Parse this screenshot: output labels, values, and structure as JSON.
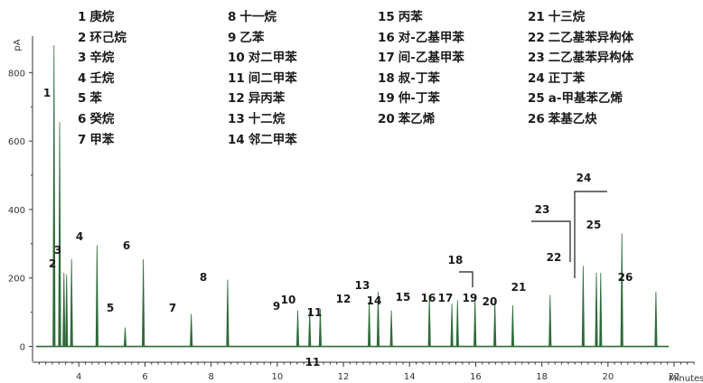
{
  "chart_data": {
    "type": "line",
    "y_unit": "pA",
    "x_unit": "Minutes",
    "xlim": [
      2.6,
      22.6
    ],
    "ylim": [
      -25,
      880
    ],
    "x_ticks": [
      4,
      6,
      8,
      10,
      12,
      14,
      16,
      18,
      20,
      22
    ],
    "y_ticks": [
      0,
      200,
      400,
      600,
      800
    ],
    "baseline": 0,
    "line_color": "#2e6b3a",
    "legend": [
      {
        "n": "1",
        "name": "庚烷"
      },
      {
        "n": "2",
        "name": "环己烷"
      },
      {
        "n": "3",
        "name": "辛烷"
      },
      {
        "n": "4",
        "name": "壬烷"
      },
      {
        "n": "5",
        "name": "苯"
      },
      {
        "n": "6",
        "name": "癸烷"
      },
      {
        "n": "7",
        "name": "甲苯"
      },
      {
        "n": "8",
        "name": "十一烷"
      },
      {
        "n": "9",
        "name": "乙苯"
      },
      {
        "n": "10",
        "name": "对二甲苯"
      },
      {
        "n": "11",
        "name": "间二甲苯"
      },
      {
        "n": "12",
        "name": "异丙苯"
      },
      {
        "n": "13",
        "name": "十二烷"
      },
      {
        "n": "14",
        "name": "邻二甲苯"
      },
      {
        "n": "15",
        "name": "丙苯"
      },
      {
        "n": "16",
        "name": "对-乙基甲苯"
      },
      {
        "n": "17",
        "name": "间-乙基甲苯"
      },
      {
        "n": "18",
        "name": "叔-丁苯"
      },
      {
        "n": "19",
        "name": "仲-丁苯"
      },
      {
        "n": "20",
        "name": "苯乙烯"
      },
      {
        "n": "21",
        "name": "十三烷"
      },
      {
        "n": "22",
        "name": "二乙基苯异构体"
      },
      {
        "n": "23",
        "name": "二乙基苯异构体"
      },
      {
        "n": "24",
        "name": "正丁苯"
      },
      {
        "n": "25",
        "name": "a-甲基苯乙烯"
      },
      {
        "n": "26",
        "name": "苯基乙炔"
      }
    ],
    "peaks": [
      {
        "label": "1",
        "x": 3.25,
        "y": 880,
        "w": 0.05
      },
      {
        "label": "2",
        "x": 3.42,
        "y": 655,
        "w": 0.04
      },
      {
        "label": "",
        "x": 3.55,
        "y": 215,
        "w": 0.035
      },
      {
        "label": "3",
        "x": 3.63,
        "y": 210,
        "w": 0.035
      },
      {
        "label": "",
        "x": 3.78,
        "y": 255,
        "w": 0.035
      },
      {
        "label": "4",
        "x": 4.55,
        "y": 295,
        "w": 0.035
      },
      {
        "label": "5",
        "x": 5.4,
        "y": 55,
        "w": 0.035
      },
      {
        "label": "6",
        "x": 5.95,
        "y": 255,
        "w": 0.035
      },
      {
        "label": "7",
        "x": 7.4,
        "y": 95,
        "w": 0.04
      },
      {
        "label": "8",
        "x": 8.5,
        "y": 195,
        "w": 0.04
      },
      {
        "label": "9",
        "x": 10.62,
        "y": 105,
        "w": 0.04
      },
      {
        "label": "10",
        "x": 10.98,
        "y": 105,
        "w": 0.04
      },
      {
        "label": "11",
        "x": 11.3,
        "y": 110,
        "w": 0.04
      },
      {
        "label": "12",
        "x": 12.78,
        "y": 130,
        "w": 0.04
      },
      {
        "label": "13",
        "x": 13.05,
        "y": 160,
        "w": 0.04
      },
      {
        "label": "14",
        "x": 13.45,
        "y": 105,
        "w": 0.04
      },
      {
        "label": "15",
        "x": 14.6,
        "y": 150,
        "w": 0.04
      },
      {
        "label": "16",
        "x": 15.28,
        "y": 125,
        "w": 0.04
      },
      {
        "label": "17",
        "x": 15.45,
        "y": 135,
        "w": 0.04
      },
      {
        "label": "18",
        "x": 15.98,
        "y": 145,
        "w": 0.04
      },
      {
        "label": "19",
        "x": 16.58,
        "y": 135,
        "w": 0.04
      },
      {
        "label": "20",
        "x": 17.12,
        "y": 120,
        "w": 0.04
      },
      {
        "label": "21",
        "x": 18.25,
        "y": 150,
        "w": 0.045
      },
      {
        "label": "22",
        "x": 19.25,
        "y": 235,
        "w": 0.045
      },
      {
        "label": "23",
        "x": 19.65,
        "y": 215,
        "w": 0.045
      },
      {
        "label": "24",
        "x": 19.78,
        "y": 215,
        "w": 0.045
      },
      {
        "label": "25",
        "x": 20.42,
        "y": 330,
        "w": 0.045
      },
      {
        "label": "26",
        "x": 21.45,
        "y": 160,
        "w": 0.045
      }
    ]
  }
}
